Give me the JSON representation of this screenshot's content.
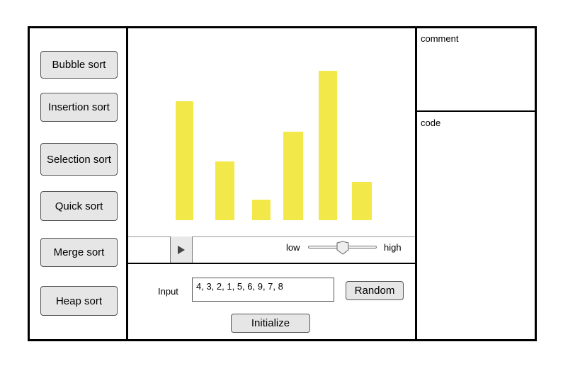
{
  "algorithms": [
    {
      "label": "Bubble sort"
    },
    {
      "label": "Insertion sort"
    },
    {
      "label": "Selection sort"
    },
    {
      "label": "Quick sort"
    },
    {
      "label": "Merge sort"
    },
    {
      "label": "Heap sort"
    }
  ],
  "chart_data": {
    "type": "bar",
    "values": [
      4,
      3,
      2,
      1,
      5,
      6,
      9,
      7,
      8
    ],
    "visible_bars": [
      5.9,
      2.9,
      1.0,
      4.4,
      7.4,
      1.9
    ],
    "color": "#f3e84a"
  },
  "speed": {
    "low_label": "low",
    "high_label": "high",
    "value": 0.5
  },
  "controls": {
    "input_label": "Input",
    "input_value": "4, 3, 2, 1, 5, 6, 9, 7, 8",
    "random_label": "Random",
    "initialize_label": "Initialize"
  },
  "panels": {
    "comment_label": "comment",
    "code_label": "code"
  },
  "icons": {
    "play": "play-icon"
  }
}
